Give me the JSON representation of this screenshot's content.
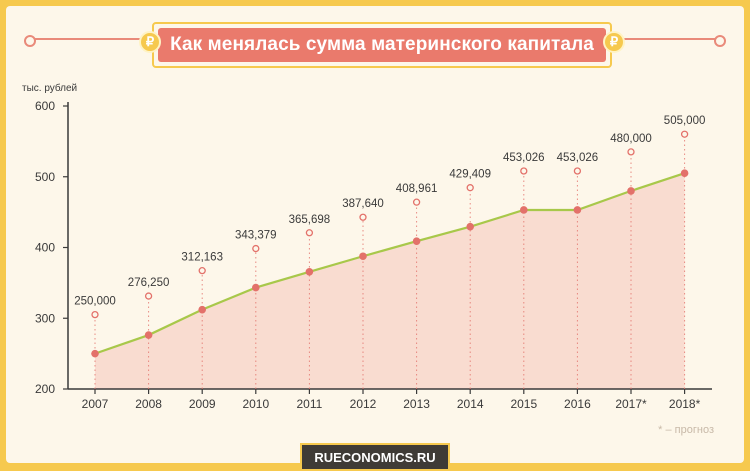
{
  "title": "Как менялась сумма материнского капитала",
  "coin_symbol": "₽",
  "footnote": "* – прогноз",
  "source": "RUECONOMICS.RU",
  "colors": {
    "line": "#a8c84a",
    "point": "#e3716a",
    "area": "#f7d3c7",
    "banner": "#ea7a6c",
    "frame": "#f6c94e"
  },
  "chart_data": {
    "type": "area",
    "ylabel": "тыс. рублей",
    "xlabel": "",
    "ylim": [
      200,
      600
    ],
    "yticks": [
      "200",
      "300",
      "400",
      "500",
      "600"
    ],
    "categories": [
      "2007",
      "2008",
      "2009",
      "2010",
      "2011",
      "2012",
      "2013",
      "2014",
      "2015",
      "2016",
      "2017*",
      "2018*"
    ],
    "values": [
      250000,
      276250,
      312163,
      343379,
      365698,
      387640,
      408961,
      429409,
      453026,
      453026,
      480000,
      505000
    ],
    "data_labels": [
      "250,000",
      "276,250",
      "312,163",
      "343,379",
      "365,698",
      "387,640",
      "408,961",
      "429,409",
      "453,026",
      "453,026",
      "480,000",
      "505,000"
    ],
    "grid": false
  }
}
